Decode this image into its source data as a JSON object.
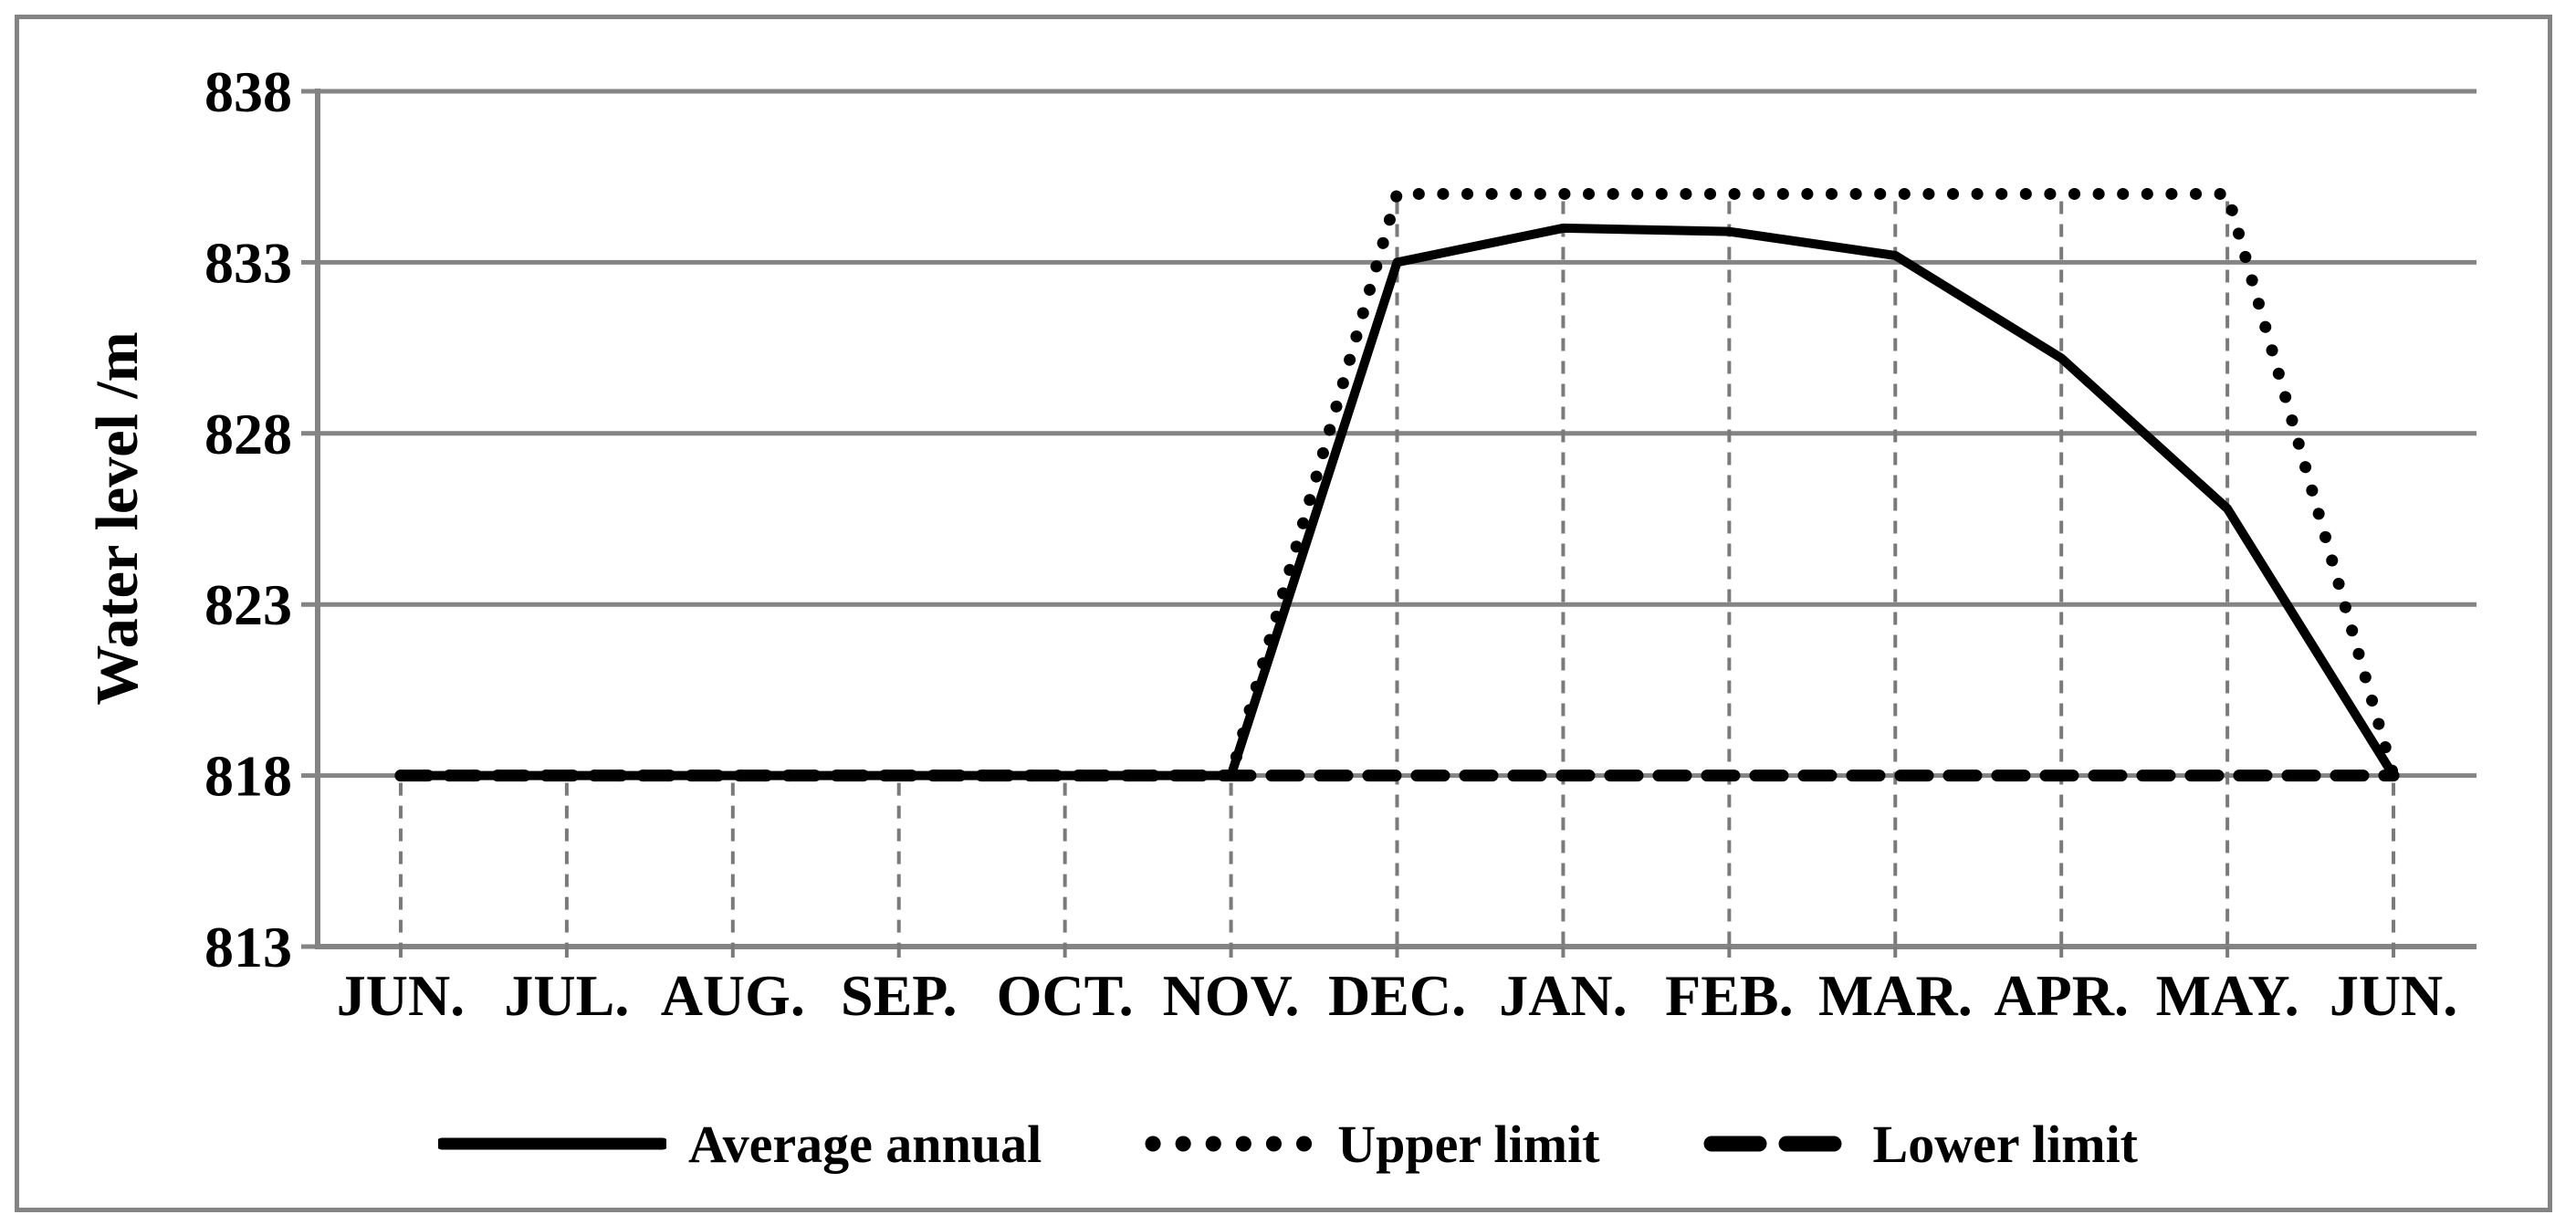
{
  "chart_data": {
    "type": "line",
    "title": "",
    "ylabel": "Water level /m",
    "xlabel": "",
    "ylim": [
      813,
      838
    ],
    "yticks": [
      838,
      833,
      828,
      823,
      818,
      813
    ],
    "ytick_step": 5,
    "categories": [
      "JUN.",
      "JUL.",
      "AUG.",
      "SEP.",
      "OCT.",
      "NOV.",
      "DEC.",
      "JAN.",
      "FEB.",
      "MAR.",
      "APR.",
      "MAY.",
      "JUN."
    ],
    "grid": {
      "horizontal": true,
      "vertical_droplines": true
    },
    "legend_position": "bottom",
    "series": [
      {
        "name": "Average annual",
        "style": "solid",
        "values": [
          818,
          818,
          818,
          818,
          818,
          818,
          833,
          834,
          833.9,
          833.2,
          830.2,
          825.8,
          818
        ]
      },
      {
        "name": "Upper limit",
        "style": "dotted",
        "values": [
          818,
          818,
          818,
          818,
          818,
          818,
          835,
          835,
          835,
          835,
          835,
          835,
          818
        ]
      },
      {
        "name": "Lower limit",
        "style": "dashed",
        "values": [
          818,
          818,
          818,
          818,
          818,
          818,
          818,
          818,
          818,
          818,
          818,
          818,
          818
        ]
      }
    ]
  },
  "colors": {
    "series": "#000000",
    "grid": "#848484",
    "dropline": "#7a7a7a",
    "figure_border": "#848484",
    "text": "#000000",
    "background": "#ffffff"
  }
}
